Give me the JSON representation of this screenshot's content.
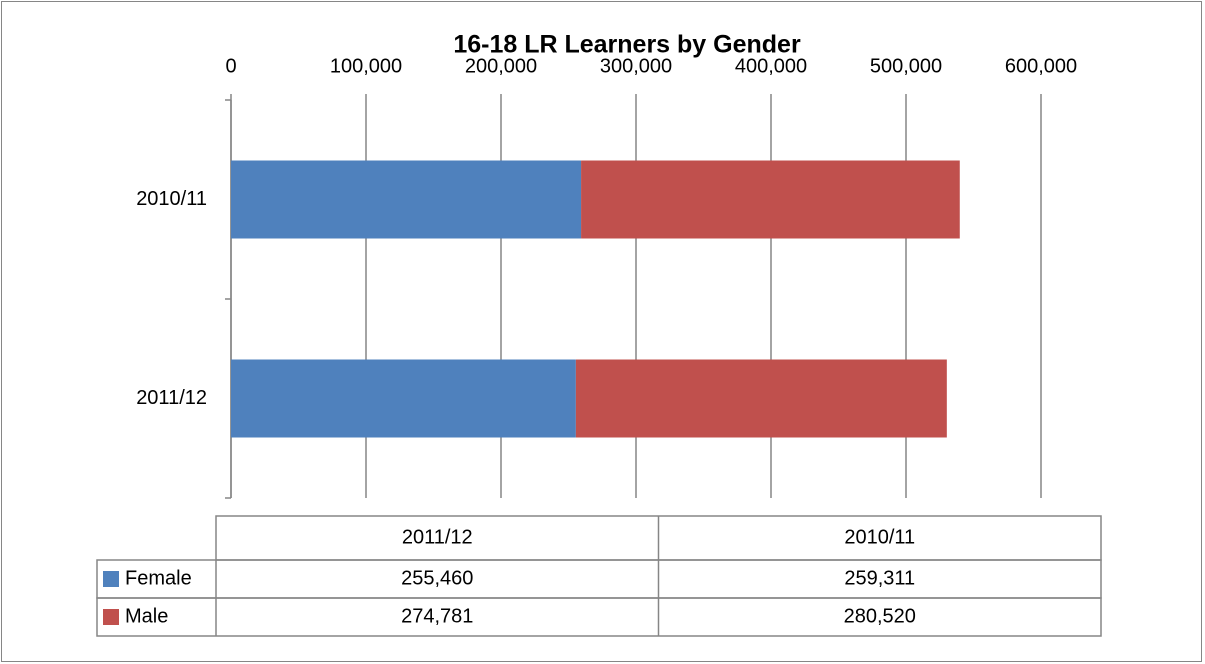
{
  "chart_data": {
    "type": "stacked_barh",
    "title": "16-18 LR Learners by Gender",
    "categories": [
      "2011/12",
      "2010/11"
    ],
    "series": [
      {
        "name": "Female",
        "color": "#4f81bd",
        "values": [
          255460,
          259311
        ],
        "value_labels": [
          "255,460",
          "259,311"
        ]
      },
      {
        "name": "Male",
        "color": "#c0504d",
        "values": [
          274781,
          280520
        ],
        "value_labels": [
          "274,781",
          "280,520"
        ]
      }
    ],
    "xlim": [
      0,
      600000
    ],
    "xticks": [
      0,
      {
        "value": 100000,
        "label": "100,000"
      },
      {
        "value": 200000,
        "label": "200,000"
      },
      {
        "value": 300000,
        "label": "300,000"
      },
      {
        "value": 400000,
        "label": "400,000"
      },
      {
        "value": 500000,
        "label": "500,000"
      },
      {
        "value": 600000,
        "label": "600,000"
      }
    ],
    "grid": true
  }
}
